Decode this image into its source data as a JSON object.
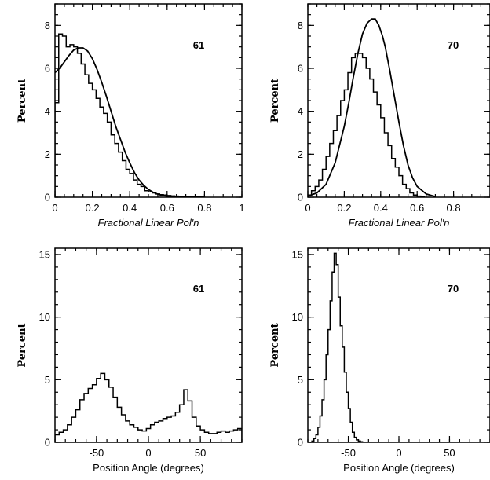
{
  "chart_data": [
    {
      "type": "step-histogram",
      "tag": "61",
      "xlabel": "Fractional Linear Pol'n",
      "ylabel": "Percent",
      "xlim": [
        0,
        1
      ],
      "ylim": [
        0,
        9
      ],
      "xticks": [
        0,
        0.2,
        0.4,
        0.6,
        0.8,
        1
      ],
      "xtick_labels": [
        "0",
        "0.2",
        "0.4",
        "0.6",
        "0.8",
        "1"
      ],
      "yticks": [
        0,
        2,
        4,
        6,
        8
      ],
      "ytick_labels": [
        "0",
        "2",
        "4",
        "6",
        "8"
      ],
      "minor_x_step": 0.05,
      "minor_y_step": 0.5,
      "bin_width": 0.02,
      "x_start": 0,
      "values": [
        4.4,
        7.6,
        7.5,
        7.0,
        7.1,
        7.0,
        6.7,
        6.2,
        5.7,
        5.3,
        5.0,
        4.6,
        4.2,
        3.9,
        3.5,
        2.9,
        2.5,
        2.1,
        1.7,
        1.3,
        1.1,
        0.8,
        0.6,
        0.5,
        0.3,
        0.25,
        0.2,
        0.15,
        0.12,
        0.1,
        0.08,
        0.06,
        0.05,
        0.04,
        0.04,
        0.03,
        0.02,
        0.02,
        0.01,
        0.01
      ],
      "fit_curve": {
        "x": [
          0,
          0.025,
          0.05,
          0.075,
          0.1,
          0.125,
          0.15,
          0.175,
          0.2,
          0.225,
          0.25,
          0.275,
          0.3,
          0.325,
          0.35,
          0.375,
          0.4,
          0.425,
          0.45,
          0.475,
          0.5,
          0.525,
          0.55,
          0.575,
          0.6,
          0.65,
          0.7
        ],
        "y": [
          5.8,
          6.0,
          6.3,
          6.6,
          6.85,
          6.95,
          6.95,
          6.8,
          6.45,
          5.95,
          5.35,
          4.7,
          4.0,
          3.3,
          2.7,
          2.1,
          1.6,
          1.15,
          0.8,
          0.55,
          0.36,
          0.23,
          0.14,
          0.08,
          0.05,
          0.02,
          0.0
        ]
      }
    },
    {
      "type": "step-histogram",
      "tag": "70",
      "xlabel": "Fractional Linear Pol'n",
      "ylabel": "Percent",
      "xlim": [
        0,
        1
      ],
      "ylim": [
        0,
        9
      ],
      "xticks": [
        0,
        0.2,
        0.4,
        0.6,
        0.8
      ],
      "xtick_labels": [
        "0",
        "0.2",
        "0.4",
        "0.6",
        "0.8"
      ],
      "yticks": [
        0,
        2,
        4,
        6,
        8
      ],
      "ytick_labels": [
        "0",
        "2",
        "4",
        "6",
        "8"
      ],
      "minor_x_step": 0.05,
      "minor_y_step": 0.5,
      "bin_width": 0.02,
      "x_start": 0,
      "values": [
        0.1,
        0.3,
        0.5,
        0.8,
        1.3,
        1.9,
        2.5,
        3.1,
        3.8,
        4.5,
        5.0,
        5.8,
        6.5,
        6.7,
        6.7,
        6.5,
        6.0,
        5.5,
        4.9,
        4.3,
        3.7,
        3.0,
        2.4,
        1.8,
        1.4,
        1.0,
        0.6,
        0.4,
        0.2,
        0.1,
        0.05,
        0.02
      ],
      "fit_curve": {
        "x": [
          0,
          0.05,
          0.1,
          0.15,
          0.2,
          0.225,
          0.25,
          0.275,
          0.3,
          0.325,
          0.35,
          0.37,
          0.39,
          0.41,
          0.425,
          0.45,
          0.475,
          0.5,
          0.525,
          0.55,
          0.575,
          0.6,
          0.65,
          0.7
        ],
        "y": [
          0.05,
          0.2,
          0.6,
          1.6,
          3.3,
          4.4,
          5.6,
          6.7,
          7.6,
          8.1,
          8.3,
          8.3,
          8.0,
          7.5,
          7.0,
          5.9,
          4.7,
          3.5,
          2.4,
          1.5,
          0.9,
          0.5,
          0.15,
          0.03
        ]
      }
    },
    {
      "type": "step-histogram",
      "tag": "61",
      "xlabel": "Position Angle (degrees)",
      "ylabel": "Percent",
      "xlim": [
        -90,
        90
      ],
      "ylim": [
        0,
        15.5
      ],
      "xticks": [
        -50,
        0,
        50
      ],
      "xtick_labels": [
        "-50",
        "0",
        "50"
      ],
      "yticks": [
        0,
        5,
        10,
        15
      ],
      "ytick_labels": [
        "0",
        "5",
        "10",
        "15"
      ],
      "minor_x_step": 10,
      "minor_y_step": 1,
      "bin_width": 4,
      "x_start": -90,
      "values": [
        0.6,
        0.8,
        1.0,
        1.4,
        2.0,
        2.6,
        3.4,
        3.9,
        4.3,
        4.6,
        5.1,
        5.5,
        5.0,
        4.4,
        3.6,
        2.8,
        2.2,
        1.7,
        1.4,
        1.2,
        1.0,
        0.9,
        1.1,
        1.4,
        1.6,
        1.7,
        1.9,
        2.0,
        2.1,
        2.4,
        3.0,
        4.2,
        3.3,
        2.0,
        1.3,
        1.0,
        0.8,
        0.7,
        0.7,
        0.8,
        0.9,
        0.8,
        0.9,
        1.0,
        1.1
      ]
    },
    {
      "type": "step-histogram",
      "tag": "70",
      "xlabel": "Position Angle (degrees)",
      "ylabel": "Percent",
      "xlim": [
        -90,
        90
      ],
      "ylim": [
        0,
        15.5
      ],
      "xticks": [
        -50,
        0,
        50
      ],
      "xtick_labels": [
        "-50",
        "0",
        "50"
      ],
      "yticks": [
        0,
        5,
        10,
        15
      ],
      "ytick_labels": [
        "0",
        "5",
        "10",
        "15"
      ],
      "minor_x_step": 10,
      "minor_y_step": 1,
      "bin_width": 2,
      "x_start": -86,
      "values": [
        0.1,
        0.3,
        0.6,
        1.2,
        2.1,
        3.4,
        5.0,
        7.0,
        9.0,
        11.3,
        13.6,
        15.1,
        14.2,
        11.6,
        9.3,
        7.6,
        5.6,
        4.0,
        2.7,
        1.6,
        0.8,
        0.4,
        0.2,
        0.1,
        0.05
      ]
    }
  ]
}
